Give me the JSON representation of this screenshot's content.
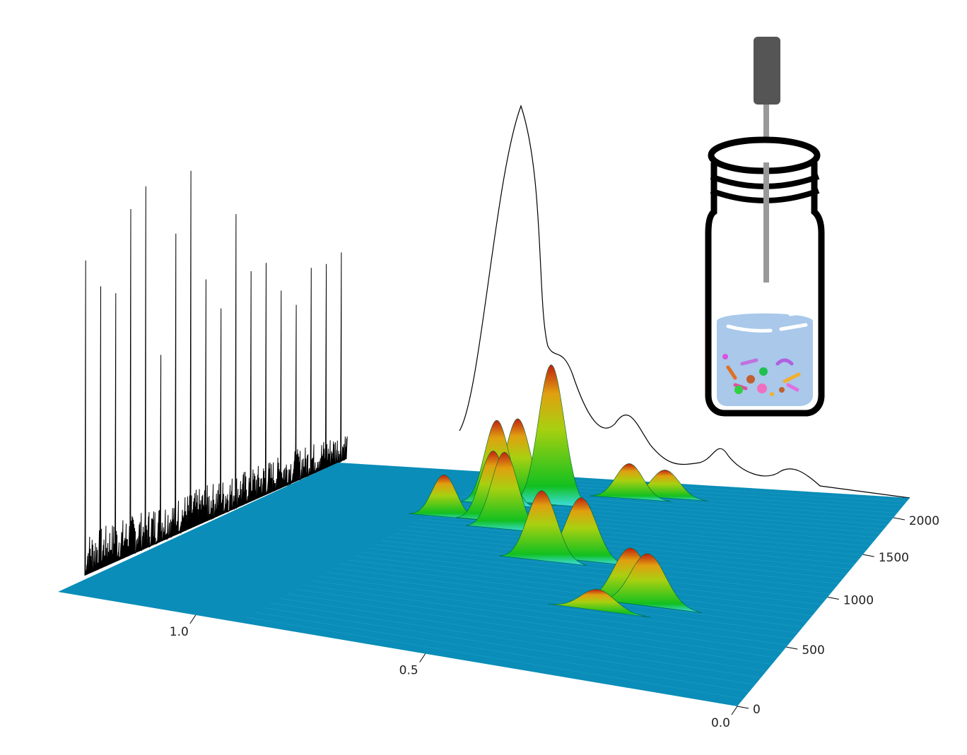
{
  "chart_data": {
    "type": "surface3d",
    "xlim": [
      1.38,
      0
    ],
    "xticks": [
      {
        "value": 1.0,
        "label": "1.0"
      },
      {
        "value": 0.5,
        "label": "0.5"
      },
      {
        "value": 0,
        "label": "0.0"
      }
    ],
    "ylim": [
      0,
      2300
    ],
    "yticks": [
      0,
      500,
      1000,
      1500,
      2000
    ],
    "zlim": [
      0,
      200
    ],
    "floor_color": "#0a8db8",
    "peaks": {
      "x": [
        0.85,
        0.78,
        0.74,
        0.66,
        0.52,
        0.45,
        0.73,
        0.68,
        0.52,
        0.45,
        0.32,
        0.28,
        0.25
      ],
      "y": [
        1500,
        1750,
        1800,
        1800,
        2000,
        2050,
        1500,
        1400,
        1050,
        1100,
        600,
        700,
        700
      ],
      "values": [
        60,
        120,
        120,
        200,
        50,
        40,
        100,
        110,
        100,
        90,
        30,
        80,
        75
      ]
    }
  }
}
